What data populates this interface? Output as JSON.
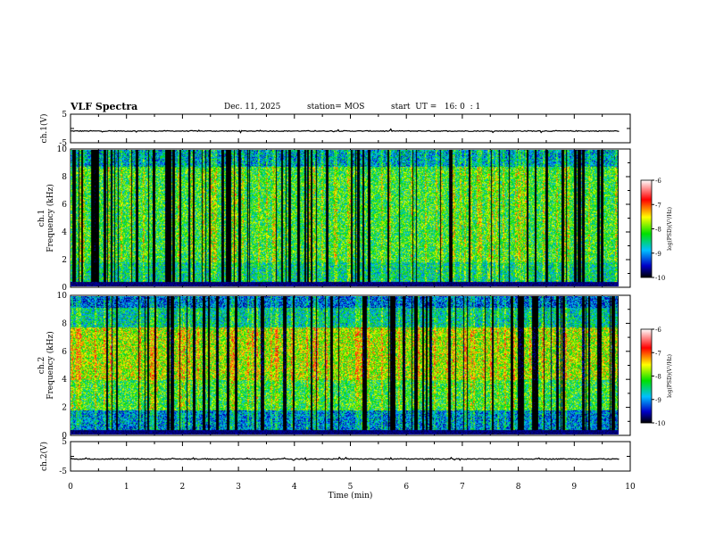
{
  "header": {
    "title": "VLF Spectra",
    "date": "Dec. 11, 2025",
    "station": "station= MOS",
    "start_ut": "start  UT =   16: 0  : 1"
  },
  "chart_data": [
    {
      "type": "line",
      "name": "ch1-waveform",
      "ylabel": "ch.1(V)",
      "ylim": [
        -5,
        5
      ],
      "yticks": [
        "5",
        "-5"
      ],
      "xlim": [
        0,
        10
      ],
      "baseline": -0.9,
      "series": [
        {
          "name": "ch.1 voltage",
          "x_range": [
            0,
            9.8
          ],
          "mean": -0.9,
          "noise": 0.15
        }
      ]
    },
    {
      "type": "heatmap",
      "name": "ch1-spectrogram",
      "ylabel_top": "ch.1",
      "ylabel": "Frequency  (kHz)",
      "ylim": [
        0,
        10
      ],
      "yticks": [
        "0",
        "2",
        "4",
        "6",
        "8",
        "10"
      ],
      "xlim": [
        0,
        10
      ],
      "data_end_min": 9.8,
      "colorbar": {
        "label": "log(PSD)(V²/Hz)",
        "range": [
          -10,
          -6
        ],
        "ticks": [
          "-6",
          "-7",
          "-8",
          "-9",
          "-10"
        ]
      }
    },
    {
      "type": "heatmap",
      "name": "ch2-spectrogram",
      "ylabel_top": "ch.2",
      "ylabel": "Frequency  (kHz)",
      "ylim": [
        0,
        10
      ],
      "yticks": [
        "0",
        "2",
        "4",
        "6",
        "8",
        "10"
      ],
      "xlim": [
        0,
        10
      ],
      "data_end_min": 9.8,
      "colorbar": {
        "label": "log(PSD)(V²/Hz)",
        "range": [
          -10,
          -6
        ],
        "ticks": [
          "-6",
          "-7",
          "-8",
          "-9",
          "-10"
        ]
      }
    },
    {
      "type": "line",
      "name": "ch2-waveform",
      "ylabel": "ch.2(V)",
      "ylim": [
        -5,
        5
      ],
      "yticks": [
        "5",
        "-5"
      ],
      "xlim": [
        0,
        10
      ],
      "baseline": -0.9,
      "series": [
        {
          "name": "ch.2 voltage",
          "x_range": [
            0,
            9.8
          ],
          "mean": -0.9,
          "noise": 0.15
        }
      ]
    }
  ],
  "x_axis": {
    "label": "Time  (min)",
    "ticks": [
      "0",
      "1",
      "2",
      "3",
      "4",
      "5",
      "6",
      "7",
      "8",
      "9",
      "10"
    ]
  }
}
